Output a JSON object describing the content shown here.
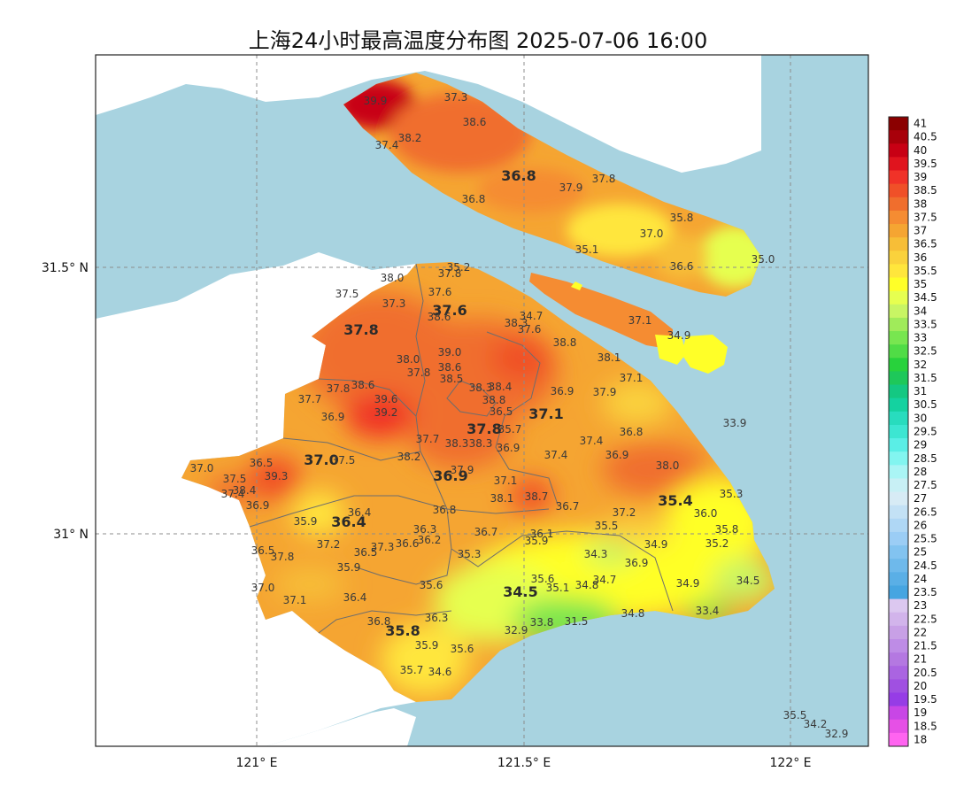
{
  "title": "上海24小时最高温度分布图 2025-07-06 16:00",
  "colors": {
    "sea": "#a8d3e0",
    "land_outside": "#ffffff",
    "frame": "#222222",
    "grid": "#8c8c8c",
    "district_border": "#6d6d6d"
  },
  "axes": {
    "x_ticks": [
      "121° E",
      "121.5° E",
      "122° E"
    ],
    "y_ticks": [
      "31.5° N",
      "31° N"
    ]
  },
  "colorbar": {
    "labels": [
      "41",
      "40.5",
      "40",
      "39.5",
      "39",
      "38.5",
      "38",
      "37.5",
      "37",
      "36.5",
      "36",
      "35.5",
      "35",
      "34.5",
      "34",
      "33.5",
      "33",
      "32.5",
      "32",
      "31.5",
      "31",
      "30.5",
      "30",
      "29.5",
      "29",
      "28.5",
      "28",
      "27.5",
      "27",
      "26.5",
      "26",
      "25.5",
      "25",
      "24.5",
      "24",
      "23.5",
      "23",
      "22.5",
      "22",
      "21.5",
      "21",
      "20.5",
      "20",
      "19.5",
      "19",
      "18.5",
      "18"
    ],
    "colors": [
      "#8b0000",
      "#a8000a",
      "#c80014",
      "#e0141e",
      "#f03228",
      "#f05028",
      "#f06e2d",
      "#f58c32",
      "#f5a532",
      "#f7be37",
      "#fad23c",
      "#ffe63c",
      "#ffff28",
      "#e6ff50",
      "#c8f564",
      "#a0eb5a",
      "#78e650",
      "#50dc46",
      "#28d23c",
      "#1ec85a",
      "#14c882",
      "#14d2a0",
      "#28dcbe",
      "#3ce6d2",
      "#5aeee6",
      "#82f5f0",
      "#aaf5f5",
      "#c8f0f5",
      "#d7ebf5",
      "#c3e1f5",
      "#afd7f5",
      "#9bcdf5",
      "#82c3f0",
      "#6eb9eb",
      "#5aafe6",
      "#46a5e1",
      "#dcc8f0",
      "#d2b4eb",
      "#c8a0e6",
      "#be8ce6",
      "#b478e1",
      "#aa64e1",
      "#a050e1",
      "#963ce6",
      "#c846e6",
      "#e650e6",
      "#ff64f0"
    ]
  },
  "map_labels": [
    {
      "t": "39.9",
      "big": false
    },
    {
      "t": "37.3",
      "big": false
    },
    {
      "t": "38.6",
      "big": false
    },
    {
      "t": "38.2",
      "big": false
    },
    {
      "t": "37.4",
      "big": false
    },
    {
      "t": "36.8",
      "big": true
    },
    {
      "t": "37.9",
      "big": false
    },
    {
      "t": "37.8",
      "big": false
    },
    {
      "t": "36.8",
      "big": false
    },
    {
      "t": "35.8",
      "big": false
    },
    {
      "t": "37.0",
      "big": false
    },
    {
      "t": "35.1",
      "big": false
    },
    {
      "t": "36.6",
      "big": false
    },
    {
      "t": "35.0",
      "big": false
    },
    {
      "t": "35.2",
      "big": false
    },
    {
      "t": "37.8",
      "big": false
    },
    {
      "t": "38.0",
      "big": false
    },
    {
      "t": "37.5",
      "big": false
    },
    {
      "t": "37.6",
      "big": false
    },
    {
      "t": "37.3",
      "big": false
    },
    {
      "t": "37.6",
      "big": true
    },
    {
      "t": "38.6",
      "big": false
    },
    {
      "t": "34.7",
      "big": false
    },
    {
      "t": "38.3",
      "big": false
    },
    {
      "t": "37.6",
      "big": false
    },
    {
      "t": "37.1",
      "big": false
    },
    {
      "t": "34.9",
      "big": false
    },
    {
      "t": "37.8",
      "big": true
    },
    {
      "t": "38.8",
      "big": false
    },
    {
      "t": "39.0",
      "big": false
    },
    {
      "t": "38.0",
      "big": false
    },
    {
      "t": "38.1",
      "big": false
    },
    {
      "t": "38.6",
      "big": false
    },
    {
      "t": "37.8",
      "big": false
    },
    {
      "t": "37.1",
      "big": false
    },
    {
      "t": "38.5",
      "big": false
    },
    {
      "t": "38.3",
      "big": false
    },
    {
      "t": "38.4",
      "big": false
    },
    {
      "t": "36.9",
      "big": false
    },
    {
      "t": "37.9",
      "big": false
    },
    {
      "t": "37.8",
      "big": false
    },
    {
      "t": "38.6",
      "big": false
    },
    {
      "t": "38.8",
      "big": false
    },
    {
      "t": "37.7",
      "big": false
    },
    {
      "t": "39.6",
      "big": false
    },
    {
      "t": "39.2",
      "big": false
    },
    {
      "t": "36.9",
      "big": false
    },
    {
      "t": "36.5",
      "big": false
    },
    {
      "t": "37.1",
      "big": true
    },
    {
      "t": "33.9",
      "big": false
    },
    {
      "t": "35.7",
      "big": false
    },
    {
      "t": "37.8",
      "big": true
    },
    {
      "t": "37.7",
      "big": false
    },
    {
      "t": "38.3",
      "big": false
    },
    {
      "t": "38.3",
      "big": false
    },
    {
      "t": "36.8",
      "big": false
    },
    {
      "t": "37.4",
      "big": false
    },
    {
      "t": "36.9",
      "big": false
    },
    {
      "t": "36.9",
      "big": false
    },
    {
      "t": "37.4",
      "big": false
    },
    {
      "t": "38.2",
      "big": false
    },
    {
      "t": "37.0",
      "big": true
    },
    {
      "t": "37.5",
      "big": false
    },
    {
      "t": "36.5",
      "big": false
    },
    {
      "t": "37.0",
      "big": false
    },
    {
      "t": "39.3",
      "big": false
    },
    {
      "t": "37.5",
      "big": false
    },
    {
      "t": "37.4",
      "big": false
    },
    {
      "t": "38.4",
      "big": false
    },
    {
      "t": "36.9",
      "big": true
    },
    {
      "t": "37.9",
      "big": false
    },
    {
      "t": "37.1",
      "big": false
    },
    {
      "t": "38.0",
      "big": false
    },
    {
      "t": "35.3",
      "big": false
    },
    {
      "t": "38.1",
      "big": false
    },
    {
      "t": "38.7",
      "big": false
    },
    {
      "t": "35.4",
      "big": true
    },
    {
      "t": "36.9",
      "big": false
    },
    {
      "t": "36.8",
      "big": false
    },
    {
      "t": "36.7",
      "big": false
    },
    {
      "t": "37.2",
      "big": false
    },
    {
      "t": "36.0",
      "big": false
    },
    {
      "t": "36.4",
      "big": false
    },
    {
      "t": "36.4",
      "big": true
    },
    {
      "t": "35.9",
      "big": false
    },
    {
      "t": "35.5",
      "big": false
    },
    {
      "t": "35.8",
      "big": false
    },
    {
      "t": "36.7",
      "big": false
    },
    {
      "t": "36.3",
      "big": false
    },
    {
      "t": "35.9",
      "big": false
    },
    {
      "t": "36.1",
      "big": false
    },
    {
      "t": "35.2",
      "big": false
    },
    {
      "t": "37.2",
      "big": false
    },
    {
      "t": "37.3",
      "big": false
    },
    {
      "t": "36.6",
      "big": false
    },
    {
      "t": "36.2",
      "big": false
    },
    {
      "t": "34.9",
      "big": false
    },
    {
      "t": "36.5",
      "big": false
    },
    {
      "t": "37.8",
      "big": false
    },
    {
      "t": "36.5",
      "big": false
    },
    {
      "t": "35.3",
      "big": false
    },
    {
      "t": "34.3",
      "big": false
    },
    {
      "t": "35.9",
      "big": false
    },
    {
      "t": "36.9",
      "big": false
    },
    {
      "t": "35.6",
      "big": false
    },
    {
      "t": "35.6",
      "big": false
    },
    {
      "t": "34.7",
      "big": false
    },
    {
      "t": "34.9",
      "big": false
    },
    {
      "t": "34.5",
      "big": false
    },
    {
      "t": "37.0",
      "big": false
    },
    {
      "t": "34.5",
      "big": true
    },
    {
      "t": "35.1",
      "big": false
    },
    {
      "t": "34.8",
      "big": false
    },
    {
      "t": "37.1",
      "big": false
    },
    {
      "t": "36.4",
      "big": false
    },
    {
      "t": "33.4",
      "big": false
    },
    {
      "t": "34.8",
      "big": false
    },
    {
      "t": "36.8",
      "big": false
    },
    {
      "t": "36.3",
      "big": false
    },
    {
      "t": "33.8",
      "big": false
    },
    {
      "t": "31.5",
      "big": false
    },
    {
      "t": "35.8",
      "big": true
    },
    {
      "t": "32.9",
      "big": false
    },
    {
      "t": "35.9",
      "big": false
    },
    {
      "t": "35.6",
      "big": false
    },
    {
      "t": "35.7",
      "big": false
    },
    {
      "t": "34.6",
      "big": false
    },
    {
      "t": "35.5",
      "big": false
    },
    {
      "t": "34.2",
      "big": false
    },
    {
      "t": "32.9",
      "big": false
    }
  ]
}
